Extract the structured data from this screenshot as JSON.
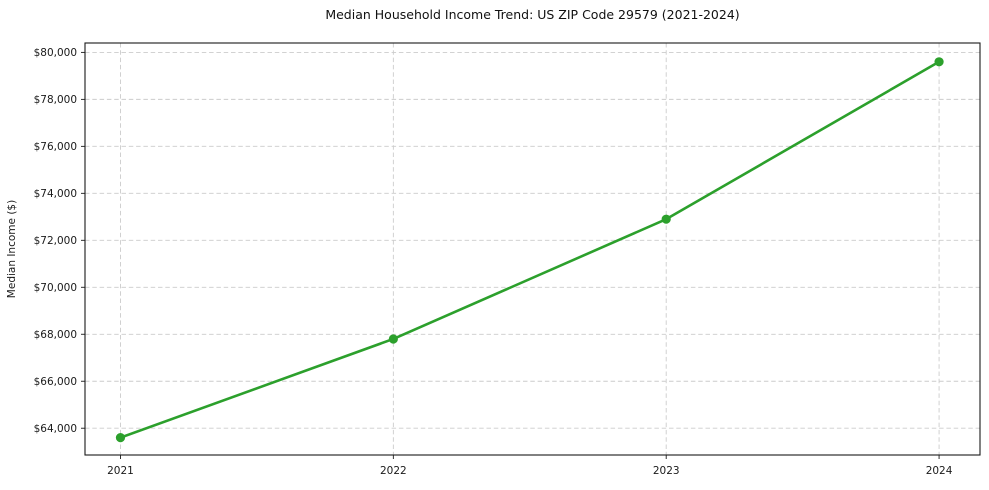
{
  "chart_data": {
    "type": "line",
    "title": "Median Household Income Trend: US ZIP Code 29579 (2021-2024)",
    "xlabel": "",
    "ylabel": "Median Income ($)",
    "categories": [
      "2021",
      "2022",
      "2023",
      "2024"
    ],
    "x": [
      2021,
      2022,
      2023,
      2024
    ],
    "series": [
      {
        "name": "Median household income",
        "values": [
          63600,
          67800,
          72900,
          79600
        ]
      }
    ],
    "yticks": [
      64000,
      66000,
      68000,
      70000,
      72000,
      74000,
      76000,
      78000,
      80000
    ],
    "ytick_labels": [
      "$64,000",
      "$66,000",
      "$68,000",
      "$70,000",
      "$72,000",
      "$74,000",
      "$76,000",
      "$78,000",
      "$80,000"
    ],
    "xlim": [
      2020.87,
      2024.15
    ],
    "ylim": [
      62860,
      80400
    ],
    "grid": true,
    "grid_style": "dashed",
    "legend": "none",
    "line_color": "#2ca02c",
    "marker": "circle",
    "marker_color": "#2ca02c",
    "background_color": "#ffffff",
    "spine_color": "#1a1a1a"
  }
}
